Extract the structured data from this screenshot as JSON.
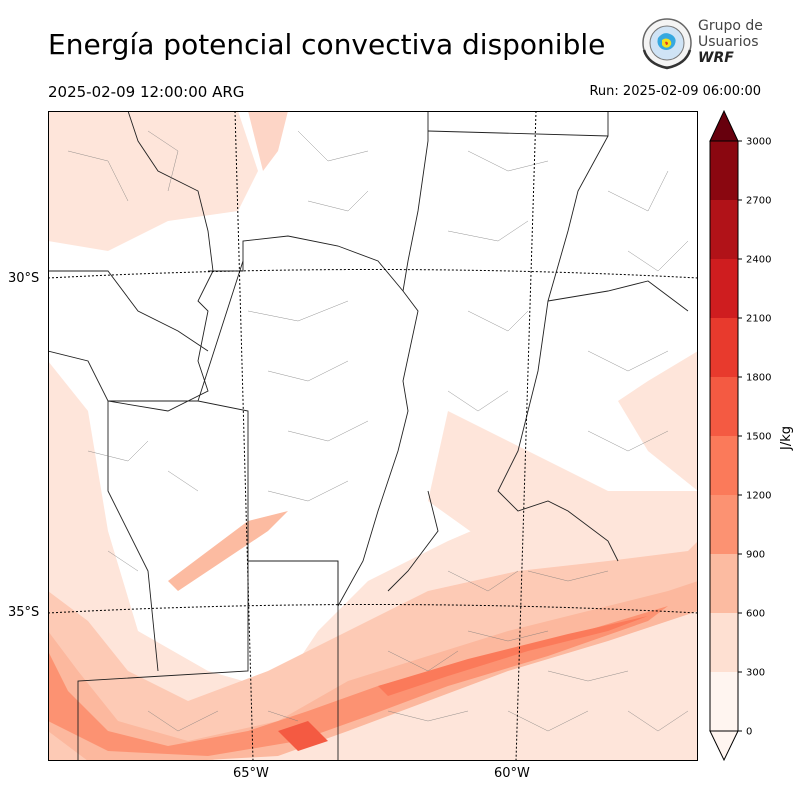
{
  "title": "Energía potencial convectiva disponible",
  "valid_time": "2025-02-09 12:00:00 ARG",
  "run_time": "Run: 2025-02-09 06:00:00",
  "logo": {
    "line1": "Grupo de",
    "line2": "Usuarios",
    "line3": "WRF"
  },
  "map": {
    "lat_labels": [
      "30°S",
      "35°S"
    ],
    "lon_labels": [
      "65°W",
      "60°W"
    ]
  },
  "colorbar": {
    "unit": "J/kg",
    "ticks": [
      "0",
      "300",
      "600",
      "900",
      "1200",
      "1500",
      "1800",
      "2100",
      "2400",
      "2700",
      "3000"
    ],
    "colors": [
      "#fff5f0",
      "#fee0d2",
      "#fcbba1",
      "#fc9272",
      "#fb7a5a",
      "#f45a42",
      "#e83a2d",
      "#cf1d1f",
      "#b11218",
      "#8a0710",
      "#67000d"
    ]
  }
}
